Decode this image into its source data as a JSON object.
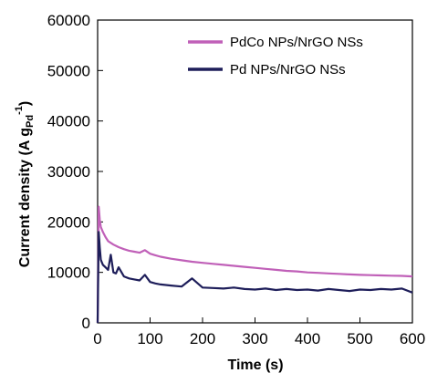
{
  "chart_data": {
    "type": "line",
    "xlabel": "Time (s)",
    "ylabel_parts": {
      "main": "Current density (A g",
      "sub": "Pd",
      "sup": "-1",
      "close": ")"
    },
    "xlim": [
      0,
      600
    ],
    "ylim": [
      0,
      60000
    ],
    "xticks": [
      0,
      100,
      200,
      300,
      400,
      500,
      600
    ],
    "yticks": [
      0,
      10000,
      20000,
      30000,
      40000,
      50000,
      60000
    ],
    "grid": false,
    "legend_position": "top-right",
    "series": [
      {
        "name": "PdCo NPs/NrGO NSs",
        "color": "#c060b8",
        "x": [
          0,
          2,
          4,
          6,
          10,
          15,
          20,
          30,
          40,
          50,
          60,
          70,
          80,
          90,
          100,
          110,
          120,
          140,
          160,
          180,
          200,
          220,
          240,
          260,
          280,
          300,
          320,
          340,
          360,
          380,
          400,
          420,
          440,
          460,
          480,
          500,
          520,
          540,
          560,
          580,
          600
        ],
        "y": [
          0,
          23000,
          20500,
          19000,
          18000,
          17000,
          16200,
          15500,
          15000,
          14600,
          14300,
          14100,
          13900,
          14400,
          13700,
          13400,
          13100,
          12700,
          12400,
          12100,
          11900,
          11700,
          11500,
          11300,
          11100,
          10900,
          10700,
          10500,
          10300,
          10200,
          10000,
          9900,
          9800,
          9700,
          9600,
          9500,
          9450,
          9400,
          9350,
          9300,
          9200
        ]
      },
      {
        "name": "Pd NPs/NrGO NSs",
        "color": "#1e1e5a",
        "x": [
          0,
          2,
          4,
          6,
          8,
          10,
          15,
          20,
          25,
          30,
          35,
          40,
          50,
          60,
          70,
          80,
          90,
          100,
          110,
          120,
          140,
          160,
          180,
          200,
          220,
          240,
          260,
          280,
          300,
          320,
          340,
          360,
          380,
          400,
          420,
          440,
          460,
          480,
          500,
          520,
          540,
          560,
          580,
          600
        ],
        "y": [
          0,
          18000,
          15000,
          12500,
          12000,
          11500,
          11000,
          10500,
          13500,
          10000,
          9800,
          11000,
          9200,
          8800,
          8600,
          8400,
          9500,
          8100,
          7800,
          7600,
          7400,
          7200,
          8800,
          7000,
          6900,
          6800,
          7000,
          6700,
          6600,
          6800,
          6500,
          6700,
          6500,
          6600,
          6400,
          6700,
          6500,
          6300,
          6600,
          6500,
          6700,
          6600,
          6800,
          6000
        ]
      }
    ]
  }
}
